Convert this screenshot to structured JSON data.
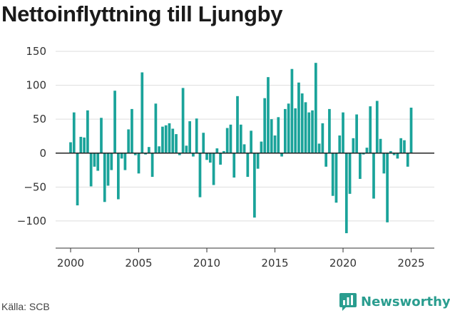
{
  "title": "Nettoinflyttning till Ljungby",
  "source": "Källa: SCB",
  "brand": "Newsworthy",
  "colors": {
    "bar": "#1aa39a",
    "axis": "#333333",
    "grid": "#dddddd",
    "brand": "#2a9d8f"
  },
  "chart_data": {
    "type": "bar",
    "title": "Nettoinflyttning till Ljungby",
    "xlabel": "",
    "ylabel": "",
    "ylim": [
      -140,
      150
    ],
    "xlim": [
      1998.9,
      2026.7
    ],
    "yticks": [
      150,
      100,
      50,
      0,
      -50,
      -100
    ],
    "ytick_labels": [
      "150",
      "100",
      "50",
      "0",
      "−50",
      "−100"
    ],
    "xticks": [
      2000,
      2005,
      2010,
      2015,
      2020,
      2025
    ],
    "xtick_labels": [
      "2000",
      "2005",
      "2010",
      "2015",
      "2020",
      "2025"
    ],
    "grid": "horizontal",
    "frequency": "quarterly",
    "start": 2000.0,
    "values": [
      16,
      60,
      -77,
      24,
      23,
      63,
      -49,
      -20,
      -26,
      52,
      -72,
      -48,
      -25,
      92,
      -68,
      -8,
      -25,
      35,
      65,
      -3,
      -30,
      119,
      -2,
      9,
      -35,
      73,
      10,
      39,
      41,
      44,
      36,
      28,
      -3,
      96,
      11,
      47,
      -5,
      51,
      -65,
      30,
      -10,
      -14,
      -47,
      7,
      -17,
      3,
      37,
      42,
      -36,
      84,
      42,
      13,
      -35,
      33,
      -95,
      -23,
      17,
      81,
      112,
      50,
      26,
      53,
      -5,
      65,
      73,
      124,
      66,
      104,
      88,
      75,
      60,
      63,
      133,
      14,
      44,
      -20,
      65,
      -63,
      -73,
      26,
      60,
      -118,
      -60,
      22,
      57,
      -38,
      -2,
      8,
      69,
      -67,
      77,
      21,
      -30,
      -102,
      3,
      -3,
      -8,
      22,
      19,
      -20,
      67
    ]
  }
}
